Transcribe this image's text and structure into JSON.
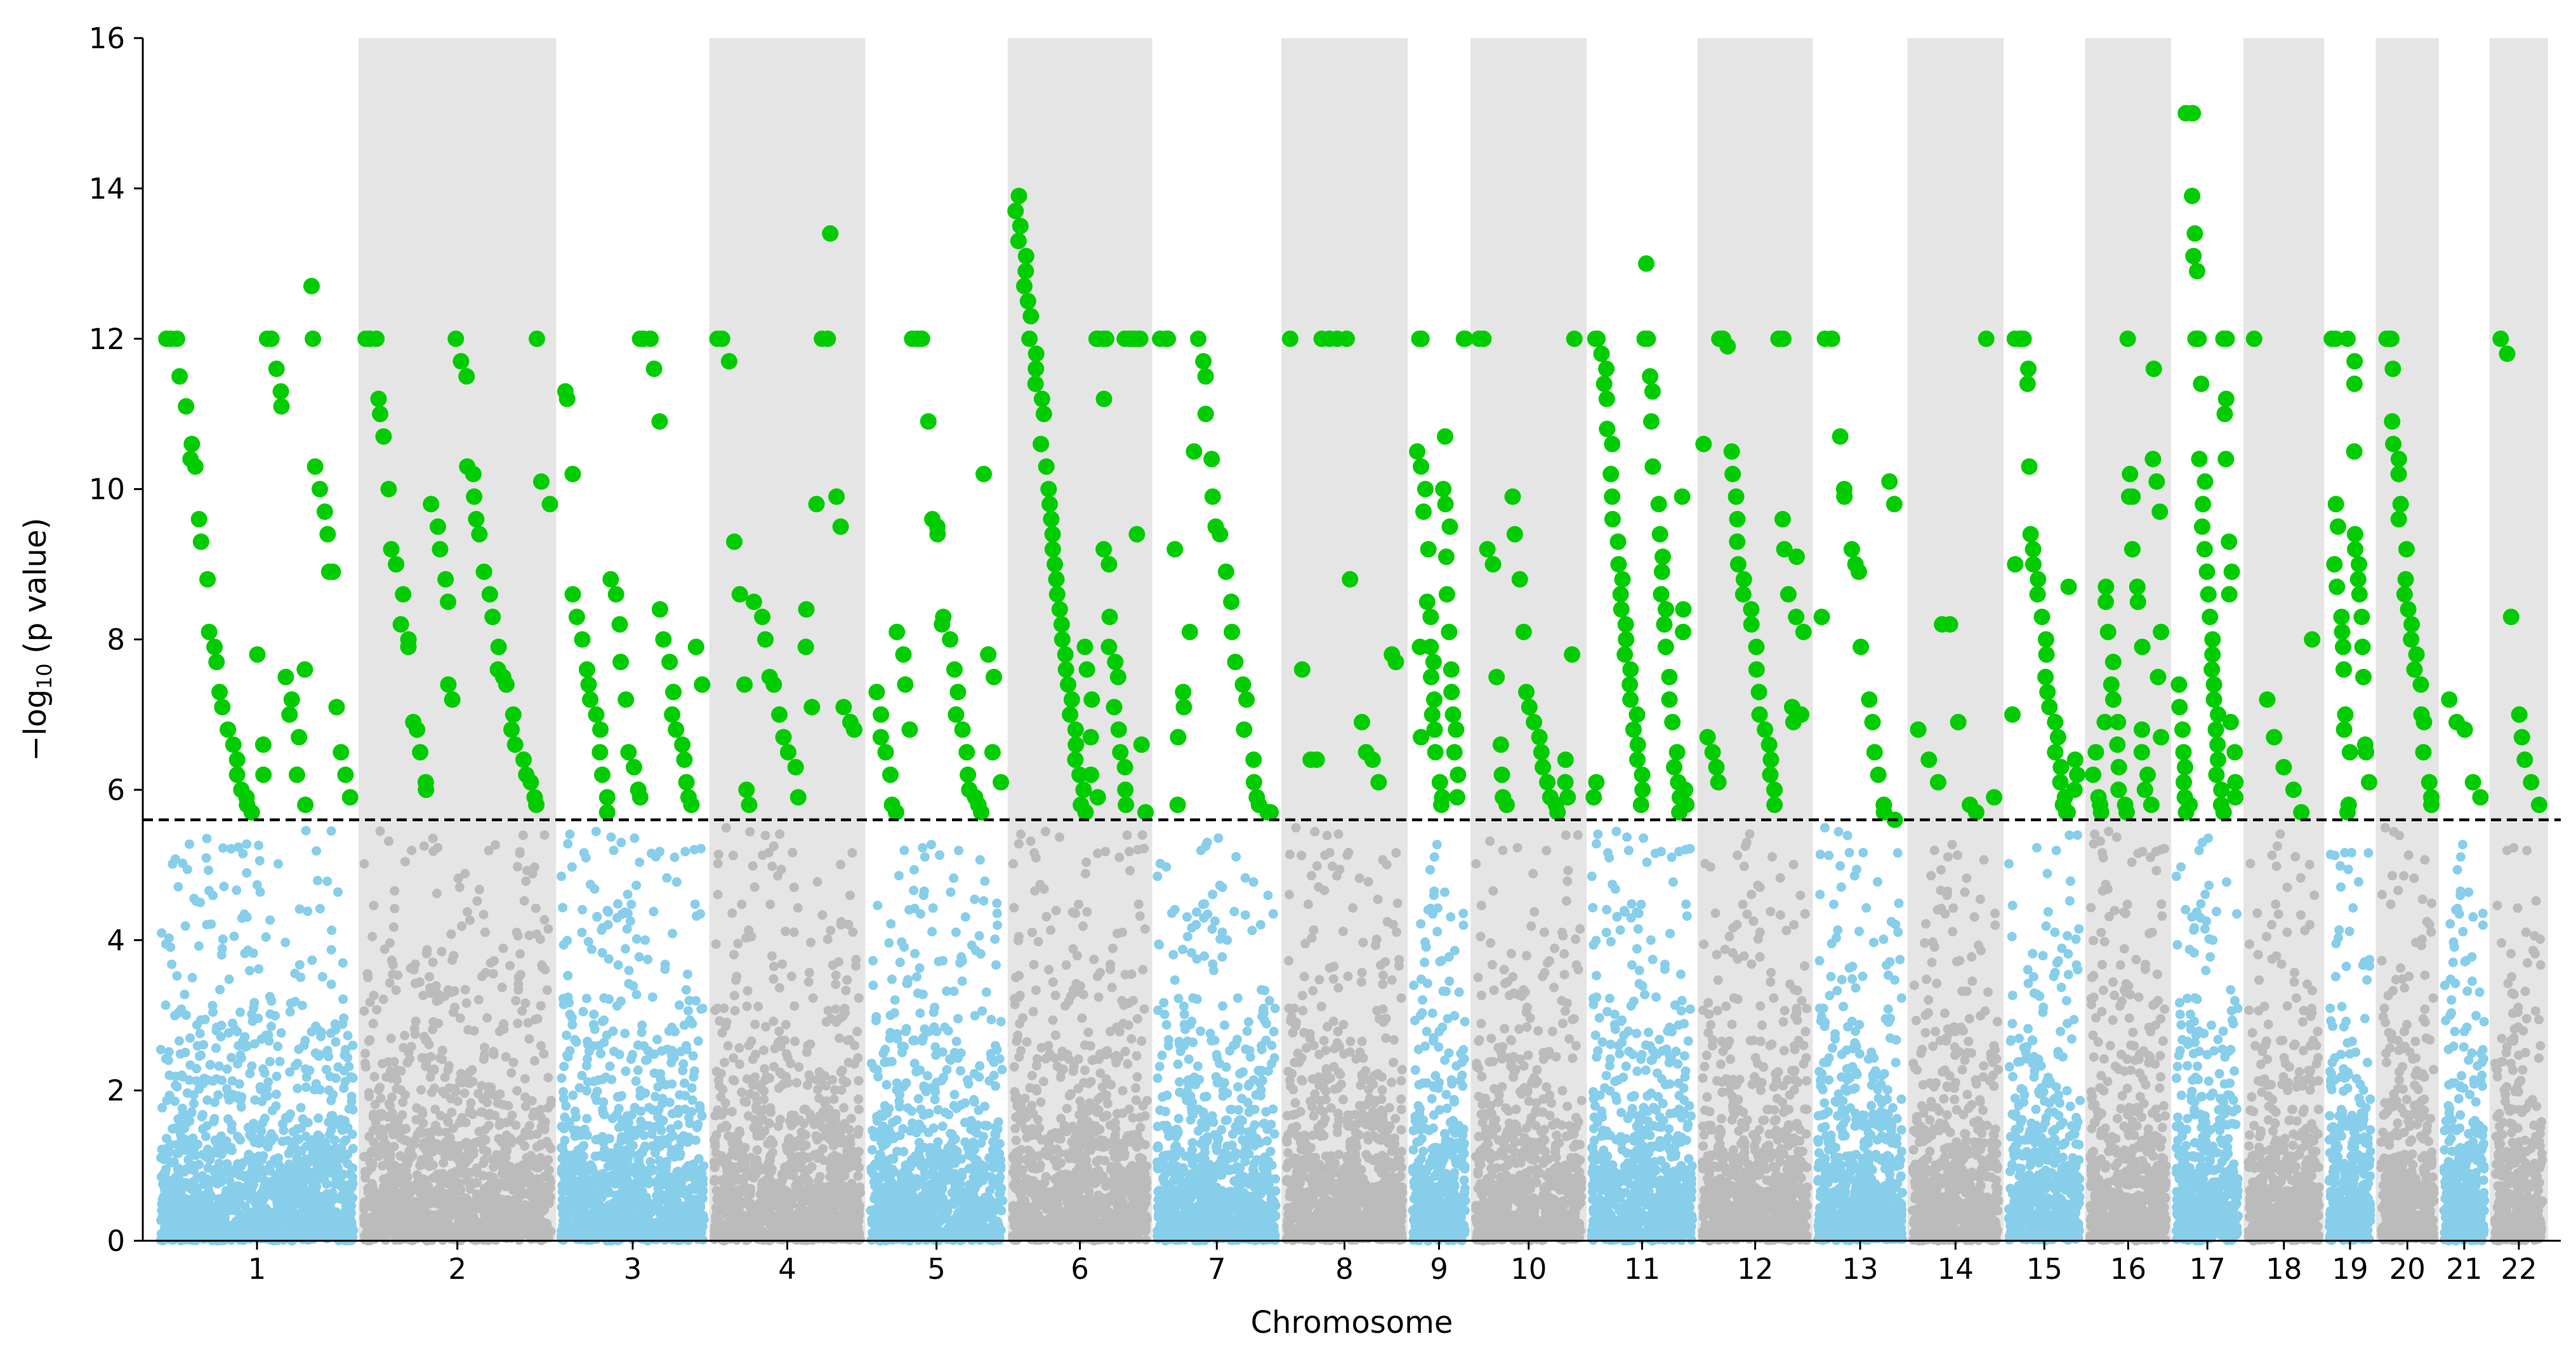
{
  "chart_data": {
    "type": "scatter",
    "subtype": "manhattan",
    "xlabel": "Chromosome",
    "ylabel_prefix": "−log",
    "ylabel_sub": "10",
    "ylabel_suffix": " (p value)",
    "ylim": [
      0,
      16
    ],
    "yticks": [
      0,
      2,
      4,
      6,
      8,
      10,
      12,
      14,
      16
    ],
    "threshold": 5.6,
    "threshold_style": "dashed",
    "band_color": "#e5e5e5",
    "colors": {
      "odd_chromosome": "#87ceeb",
      "even_chromosome": "#bbbbbb",
      "significant": "#00cc00",
      "threshold_line": "#000000"
    },
    "chromosomes": [
      {
        "label": "1",
        "start": 0,
        "end": 2640,
        "band": false
      },
      {
        "label": "2",
        "start": 2640,
        "end": 5210,
        "band": true
      },
      {
        "label": "3",
        "start": 5210,
        "end": 7200,
        "band": false
      },
      {
        "label": "4",
        "start": 7200,
        "end": 9230,
        "band": true
      },
      {
        "label": "5",
        "start": 9230,
        "end": 11080,
        "band": false
      },
      {
        "label": "6",
        "start": 11080,
        "end": 12960,
        "band": true
      },
      {
        "label": "7",
        "start": 12960,
        "end": 14640,
        "band": false
      },
      {
        "label": "8",
        "start": 14640,
        "end": 16280,
        "band": true
      },
      {
        "label": "9",
        "start": 16280,
        "end": 17100,
        "band": false
      },
      {
        "label": "10",
        "start": 17100,
        "end": 18610,
        "band": true
      },
      {
        "label": "11",
        "start": 18610,
        "end": 20050,
        "band": false
      },
      {
        "label": "12",
        "start": 20050,
        "end": 21550,
        "band": true
      },
      {
        "label": "13",
        "start": 21550,
        "end": 22780,
        "band": false
      },
      {
        "label": "14",
        "start": 22780,
        "end": 24030,
        "band": true
      },
      {
        "label": "15",
        "start": 24030,
        "end": 25090,
        "band": false
      },
      {
        "label": "16",
        "start": 25090,
        "end": 26210,
        "band": true
      },
      {
        "label": "17",
        "start": 26210,
        "end": 27150,
        "band": false
      },
      {
        "label": "18",
        "start": 27150,
        "end": 28200,
        "band": true
      },
      {
        "label": "19",
        "start": 28200,
        "end": 28870,
        "band": false
      },
      {
        "label": "20",
        "start": 28870,
        "end": 29690,
        "band": true
      },
      {
        "label": "21",
        "start": 29690,
        "end": 30350,
        "band": false
      },
      {
        "label": "22",
        "start": 30350,
        "end": 31110,
        "band": true
      }
    ],
    "significant_points": [
      {
        "chr": "1",
        "y": [
          12,
          12,
          12,
          12,
          12,
          11.5,
          11.1,
          10.6,
          10.4,
          10.3,
          9.6,
          9.3,
          8.8,
          8.1,
          7.9,
          7.7,
          7.3,
          7.1,
          6.8,
          6.6,
          6.4,
          6.2,
          6.0,
          5.9,
          5.8,
          5.7,
          7.8,
          6.6,
          6.2,
          12,
          12,
          11.6,
          11.3,
          11.1,
          7.5,
          7.2,
          7.0,
          6.7,
          6.2,
          5.8,
          7.6,
          12.7,
          12,
          10.3,
          10.0,
          9.7,
          9.4,
          8.9,
          8.9,
          7.1,
          6.5,
          6.2,
          5.9
        ]
      },
      {
        "chr": "2",
        "y": [
          12,
          12,
          12,
          11.2,
          11.0,
          10.7,
          10.0,
          9.2,
          9.0,
          8.6,
          8.2,
          8.0,
          7.9,
          6.9,
          6.8,
          6.5,
          6.1,
          6.0,
          9.8,
          9.5,
          9.2,
          8.8,
          8.5,
          7.4,
          7.2,
          12,
          11.7,
          11.5,
          10.3,
          10.2,
          9.9,
          9.6,
          9.4,
          8.9,
          8.6,
          8.3,
          7.9,
          7.6,
          7.5,
          7.4,
          7.0,
          6.8,
          6.6,
          6.4,
          6.2,
          6.1,
          5.9,
          5.8,
          12,
          10.1,
          9.8
        ]
      },
      {
        "chr": "3",
        "y": [
          11.3,
          11.2,
          10.2,
          8.6,
          8.3,
          8.0,
          7.6,
          7.4,
          7.2,
          7.0,
          6.8,
          6.5,
          6.2,
          5.9,
          5.7,
          8.8,
          8.6,
          8.2,
          7.7,
          7.2,
          6.5,
          6.3,
          6.0,
          5.9,
          12,
          12,
          12,
          12,
          11.6,
          10.9,
          8.4,
          8.0,
          7.7,
          7.3,
          7.0,
          6.8,
          6.6,
          6.4,
          6.1,
          5.9,
          5.8,
          7.9,
          7.4
        ]
      },
      {
        "chr": "4",
        "y": [
          12,
          12,
          11.7,
          9.3,
          8.6,
          7.4,
          6.0,
          5.8,
          8.5,
          8.3,
          8.0,
          7.5,
          7.4,
          7.0,
          6.7,
          6.5,
          6.3,
          5.9,
          8.4,
          7.9,
          7.1,
          9.8,
          12,
          12,
          13.4,
          9.9,
          9.5,
          7.1,
          6.9,
          6.8
        ]
      },
      {
        "chr": "5",
        "y": [
          7.3,
          7.0,
          6.7,
          6.5,
          6.2,
          5.8,
          5.7,
          8.1,
          7.8,
          7.4,
          6.8,
          12,
          12,
          12,
          12,
          12,
          10.9,
          9.6,
          9.5,
          9.4,
          8.3,
          8.2,
          8.0,
          7.6,
          7.3,
          7.0,
          6.8,
          6.5,
          6.2,
          6.0,
          5.9,
          5.8,
          5.7,
          10.2,
          7.8,
          7.5,
          6.5,
          6.1
        ]
      },
      {
        "chr": "6",
        "y": [
          13.9,
          13.7,
          13.5,
          13.3,
          13.1,
          12.9,
          12.7,
          12.5,
          12.3,
          12.0,
          11.8,
          11.6,
          11.4,
          11.2,
          11.0,
          10.6,
          10.3,
          10.0,
          9.8,
          9.6,
          9.4,
          9.2,
          9.0,
          8.8,
          8.6,
          8.4,
          8.2,
          8.0,
          7.8,
          7.6,
          7.4,
          7.2,
          7.0,
          6.8,
          6.6,
          6.4,
          6.2,
          6.0,
          5.8,
          5.7,
          7.9,
          7.6,
          7.2,
          6.7,
          6.2,
          5.9,
          12,
          12,
          12,
          12,
          11.2,
          9.2,
          9.0,
          8.3,
          7.9,
          7.7,
          7.5,
          7.1,
          6.8,
          6.5,
          6.3,
          6.0,
          5.8,
          12,
          12,
          12,
          12,
          9.4,
          12,
          12,
          12,
          6.6,
          5.7
        ]
      },
      {
        "chr": "7",
        "y": [
          12,
          12,
          12,
          9.2,
          6.7,
          5.8,
          7.3,
          7.1,
          8.1,
          10.5,
          12,
          11.7,
          11.5,
          11.0,
          10.4,
          9.9,
          9.5,
          9.4,
          8.9,
          8.5,
          8.1,
          7.7,
          7.4,
          7.2,
          6.8,
          6.4,
          6.1,
          5.9,
          5.8,
          5.7,
          5.7,
          5.7
        ]
      },
      {
        "chr": "8",
        "y": [
          12,
          7.6,
          6.4,
          6.4,
          12,
          12,
          12,
          12,
          8.8,
          6.9,
          6.5,
          6.4,
          6.1,
          7.8,
          7.7
        ]
      },
      {
        "chr": "9",
        "y": [
          10.5,
          7.9,
          6.7,
          12,
          12,
          10.3,
          10.0,
          9.7,
          9.2,
          8.5,
          8.3,
          7.9,
          7.7,
          7.5,
          7.2,
          7.0,
          6.8,
          6.5,
          6.1,
          5.9,
          5.8,
          10.7,
          10.0,
          9.8,
          9.5,
          9.1,
          8.6,
          8.1,
          7.6,
          7.3,
          7.0,
          6.8,
          6.5,
          6.2,
          5.9,
          12,
          12
        ]
      },
      {
        "chr": "10",
        "y": [
          12,
          12,
          9.2,
          9.0,
          7.5,
          6.6,
          6.2,
          5.9,
          5.8,
          9.9,
          9.4,
          8.8,
          8.1,
          7.3,
          7.1,
          6.9,
          6.7,
          6.5,
          6.3,
          6.1,
          5.9,
          5.8,
          5.7,
          6.4,
          6.1,
          5.9,
          7.8,
          12
        ]
      },
      {
        "chr": "11",
        "y": [
          6.1,
          5.9,
          12,
          12,
          11.8,
          11.6,
          11.4,
          11.2,
          10.8,
          10.6,
          10.2,
          9.9,
          9.6,
          9.3,
          9.0,
          8.8,
          8.6,
          8.4,
          8.2,
          8.0,
          7.8,
          7.6,
          7.4,
          7.2,
          7.0,
          6.8,
          6.6,
          6.4,
          6.2,
          6.0,
          5.8,
          13.0,
          12,
          12,
          11.5,
          11.3,
          10.9,
          10.3,
          9.8,
          9.4,
          9.1,
          8.9,
          8.6,
          8.4,
          8.2,
          7.9,
          7.5,
          7.2,
          6.9,
          6.5,
          6.3,
          6.1,
          5.9,
          5.7,
          9.9,
          8.4,
          8.1,
          6.0,
          5.8
        ]
      },
      {
        "chr": "12",
        "y": [
          10.6,
          6.7,
          6.5,
          6.3,
          6.1,
          12,
          12,
          12,
          11.9,
          10.5,
          10.2,
          9.9,
          9.6,
          9.3,
          9.0,
          8.8,
          8.6,
          8.4,
          8.2,
          7.9,
          7.6,
          7.3,
          7.0,
          6.8,
          6.6,
          6.4,
          6.2,
          6.0,
          5.8,
          12,
          12,
          9.6,
          9.2,
          8.6,
          7.1,
          6.9,
          9.1,
          8.3,
          8.1,
          7.0
        ]
      },
      {
        "chr": "13",
        "y": [
          8.3,
          12,
          12,
          12,
          10.7,
          10.0,
          9.9,
          9.2,
          9.0,
          8.9,
          7.9,
          7.2,
          6.9,
          6.5,
          6.2,
          5.8,
          5.7,
          10.1,
          9.8,
          5.6
        ]
      },
      {
        "chr": "14",
        "y": [
          6.8,
          6.4,
          6.1,
          8.2,
          8.2,
          6.9,
          5.8,
          5.7,
          12,
          5.9
        ]
      },
      {
        "chr": "15",
        "y": [
          9.0,
          7.0,
          12,
          12,
          12,
          12,
          12,
          11.6,
          11.4,
          10.3,
          9.4,
          9.2,
          9.0,
          8.8,
          8.6,
          8.3,
          8.0,
          7.8,
          7.5,
          7.3,
          7.1,
          6.9,
          6.7,
          6.5,
          6.3,
          6.1,
          5.9,
          5.8,
          5.7,
          5.7,
          8.7,
          6.4,
          6.2,
          6.0
        ]
      },
      {
        "chr": "16",
        "y": [
          6.5,
          6.2,
          5.9,
          5.8,
          5.7,
          6.9,
          8.7,
          8.5,
          8.1,
          7.7,
          7.4,
          7.2,
          6.9,
          6.6,
          6.3,
          6.0,
          5.8,
          5.7,
          12,
          10.2,
          9.9,
          9.9,
          9.2,
          8.7,
          8.5,
          7.9,
          6.8,
          6.5,
          6.2,
          6.0,
          5.8,
          11.6,
          10.4,
          10.1,
          9.7,
          8.1,
          7.5,
          6.7
        ]
      },
      {
        "chr": "17",
        "y": [
          7.4,
          7.1,
          6.8,
          6.5,
          6.3,
          6.1,
          5.9,
          5.8,
          5.7,
          15.0,
          15.0,
          15.0,
          13.9,
          13.4,
          13.1,
          12.9,
          12,
          12,
          12,
          12,
          11.4,
          10.4,
          10.1,
          9.8,
          9.5,
          9.2,
          8.9,
          8.6,
          8.3,
          8.0,
          7.8,
          7.6,
          7.4,
          7.2,
          7.0,
          6.8,
          6.6,
          6.4,
          6.2,
          6.0,
          5.8,
          5.7,
          12,
          12,
          11.2,
          11.0,
          10.4,
          9.3,
          8.9,
          8.6,
          6.9,
          6.5,
          6.1,
          5.9
        ]
      },
      {
        "chr": "18",
        "y": [
          12,
          7.2,
          6.7,
          6.3,
          6.0,
          5.7,
          8.0
        ]
      },
      {
        "chr": "19",
        "y": [
          12,
          12,
          9.8,
          9.5,
          9.0,
          8.7,
          8.3,
          8.1,
          7.9,
          7.6,
          7.0,
          6.8,
          6.5,
          5.8,
          5.7,
          12,
          11.7,
          11.4,
          10.5,
          9.4,
          9.2,
          9.0,
          8.8,
          8.6,
          8.3,
          7.9,
          7.5,
          6.6,
          6.5,
          6.1
        ]
      },
      {
        "chr": "20",
        "y": [
          12,
          12,
          12,
          11.6,
          10.9,
          10.6,
          10.4,
          10.2,
          9.8,
          9.6,
          9.2,
          8.8,
          8.6,
          8.4,
          8.2,
          8.0,
          7.8,
          7.6,
          7.4,
          7.0,
          6.9,
          6.5,
          6.1,
          5.9,
          5.8
        ]
      },
      {
        "chr": "21",
        "y": [
          7.2,
          6.9,
          6.8,
          6.1,
          5.9
        ]
      },
      {
        "chr": "22",
        "y": [
          12,
          11.8,
          8.3,
          7.0,
          6.7,
          6.4,
          6.1,
          5.8
        ]
      }
    ]
  }
}
